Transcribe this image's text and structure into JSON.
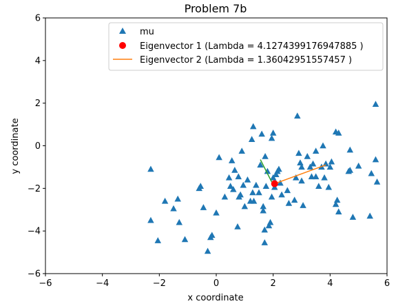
{
  "chart_data": {
    "type": "scatter",
    "title": "Problem 7b",
    "xlabel": "x coordinate",
    "ylabel": "y coordinate",
    "xlim": [
      -6,
      6
    ],
    "ylim": [
      -6,
      6
    ],
    "xticks": [
      -6,
      -4,
      -2,
      0,
      2,
      4,
      6
    ],
    "yticks": [
      -6,
      -4,
      -2,
      0,
      2,
      4,
      6
    ],
    "xtick_labels": [
      "−6",
      "−4",
      "−2",
      "0",
      "2",
      "4",
      "6"
    ],
    "ytick_labels": [
      "−6",
      "−4",
      "−2",
      "0",
      "2",
      "4",
      "6"
    ],
    "grid": false,
    "legend_position": "top-right",
    "colors": {
      "mu": "#1f77b4",
      "eigenvector1": "#ff0000",
      "eigenvector2": "#ff7f0e",
      "green_segment": "#2ca02c"
    },
    "series": [
      {
        "name": "mu",
        "marker": "triangle",
        "points": [
          [
            -2.3,
            -1.1
          ],
          [
            -2.3,
            -3.5
          ],
          [
            -2.05,
            -4.45
          ],
          [
            -1.8,
            -2.6
          ],
          [
            -1.5,
            -2.95
          ],
          [
            -1.35,
            -2.5
          ],
          [
            -1.3,
            -3.6
          ],
          [
            -1.1,
            -4.4
          ],
          [
            -0.6,
            -2.0
          ],
          [
            -0.55,
            -1.9
          ],
          [
            -0.45,
            -2.9
          ],
          [
            -0.3,
            -4.95
          ],
          [
            -0.2,
            -4.3
          ],
          [
            -0.15,
            -4.2
          ],
          [
            0.0,
            -3.15
          ],
          [
            0.1,
            -0.55
          ],
          [
            0.3,
            -2.4
          ],
          [
            0.45,
            -1.5
          ],
          [
            0.5,
            -1.9
          ],
          [
            0.55,
            -0.7
          ],
          [
            0.6,
            -2.05
          ],
          [
            0.65,
            -1.15
          ],
          [
            0.75,
            -3.8
          ],
          [
            0.78,
            -1.45
          ],
          [
            0.8,
            -2.4
          ],
          [
            0.85,
            -2.3
          ],
          [
            0.9,
            -0.25
          ],
          [
            0.95,
            -1.85
          ],
          [
            1.0,
            -2.85
          ],
          [
            1.1,
            -1.6
          ],
          [
            1.2,
            -2.6
          ],
          [
            1.25,
            0.3
          ],
          [
            1.28,
            -2.2
          ],
          [
            1.3,
            0.9
          ],
          [
            1.32,
            -2.6
          ],
          [
            1.4,
            -1.85
          ],
          [
            1.5,
            -2.2
          ],
          [
            1.55,
            -0.9
          ],
          [
            1.6,
            0.55
          ],
          [
            1.65,
            -2.85
          ],
          [
            1.65,
            -3.05
          ],
          [
            1.7,
            -3.95
          ],
          [
            1.7,
            -4.55
          ],
          [
            1.72,
            -0.5
          ],
          [
            1.75,
            -1.9
          ],
          [
            1.8,
            -1.2
          ],
          [
            1.85,
            -3.75
          ],
          [
            1.9,
            -3.6
          ],
          [
            1.95,
            0.35
          ],
          [
            1.95,
            -2.4
          ],
          [
            2.0,
            0.6
          ],
          [
            2.0,
            -1.5
          ],
          [
            2.05,
            -1.95
          ],
          [
            2.1,
            -1.35
          ],
          [
            2.15,
            -1.2
          ],
          [
            2.2,
            -1.1
          ],
          [
            2.25,
            -1.75
          ],
          [
            2.3,
            -2.3
          ],
          [
            2.5,
            -2.1
          ],
          [
            2.55,
            -2.7
          ],
          [
            2.75,
            -2.55
          ],
          [
            2.8,
            -1.5
          ],
          [
            2.85,
            1.4
          ],
          [
            2.9,
            -0.35
          ],
          [
            2.95,
            -0.8
          ],
          [
            3.0,
            -1.0
          ],
          [
            3.0,
            -1.65
          ],
          [
            3.05,
            -2.8
          ],
          [
            3.2,
            -0.5
          ],
          [
            3.3,
            -1.0
          ],
          [
            3.35,
            -1.45
          ],
          [
            3.4,
            -0.85
          ],
          [
            3.5,
            -1.45
          ],
          [
            3.5,
            -0.25
          ],
          [
            3.6,
            -1.9
          ],
          [
            3.7,
            -1.0
          ],
          [
            3.75,
            0.0
          ],
          [
            3.8,
            -1.5
          ],
          [
            3.85,
            -0.85
          ],
          [
            3.95,
            -1.95
          ],
          [
            4.0,
            -1.0
          ],
          [
            4.05,
            -0.75
          ],
          [
            4.2,
            -2.75
          ],
          [
            4.2,
            0.65
          ],
          [
            4.25,
            -2.55
          ],
          [
            4.3,
            0.6
          ],
          [
            4.3,
            -3.1
          ],
          [
            4.65,
            -1.2
          ],
          [
            4.7,
            -1.15
          ],
          [
            4.7,
            -0.2
          ],
          [
            4.8,
            -3.35
          ],
          [
            5.0,
            -0.95
          ],
          [
            5.4,
            -3.3
          ],
          [
            5.45,
            -1.3
          ],
          [
            5.6,
            1.95
          ],
          [
            5.6,
            -0.65
          ],
          [
            5.65,
            -1.7
          ]
        ]
      },
      {
        "name": "Eigenvector 1 (Lambda = 4.1274399176947885 )",
        "marker": "circle",
        "points": [
          [
            2.05,
            -1.78
          ]
        ]
      },
      {
        "name": "Eigenvector 2 (Lambda = 1.36042951557457 )",
        "marker": "line",
        "points": [
          [
            2.05,
            -1.78
          ],
          [
            3.85,
            -0.9
          ]
        ]
      }
    ],
    "annotations": [
      {
        "type": "segment",
        "color": "green",
        "points": [
          [
            1.55,
            -0.65
          ],
          [
            1.95,
            -1.7
          ]
        ]
      }
    ]
  }
}
